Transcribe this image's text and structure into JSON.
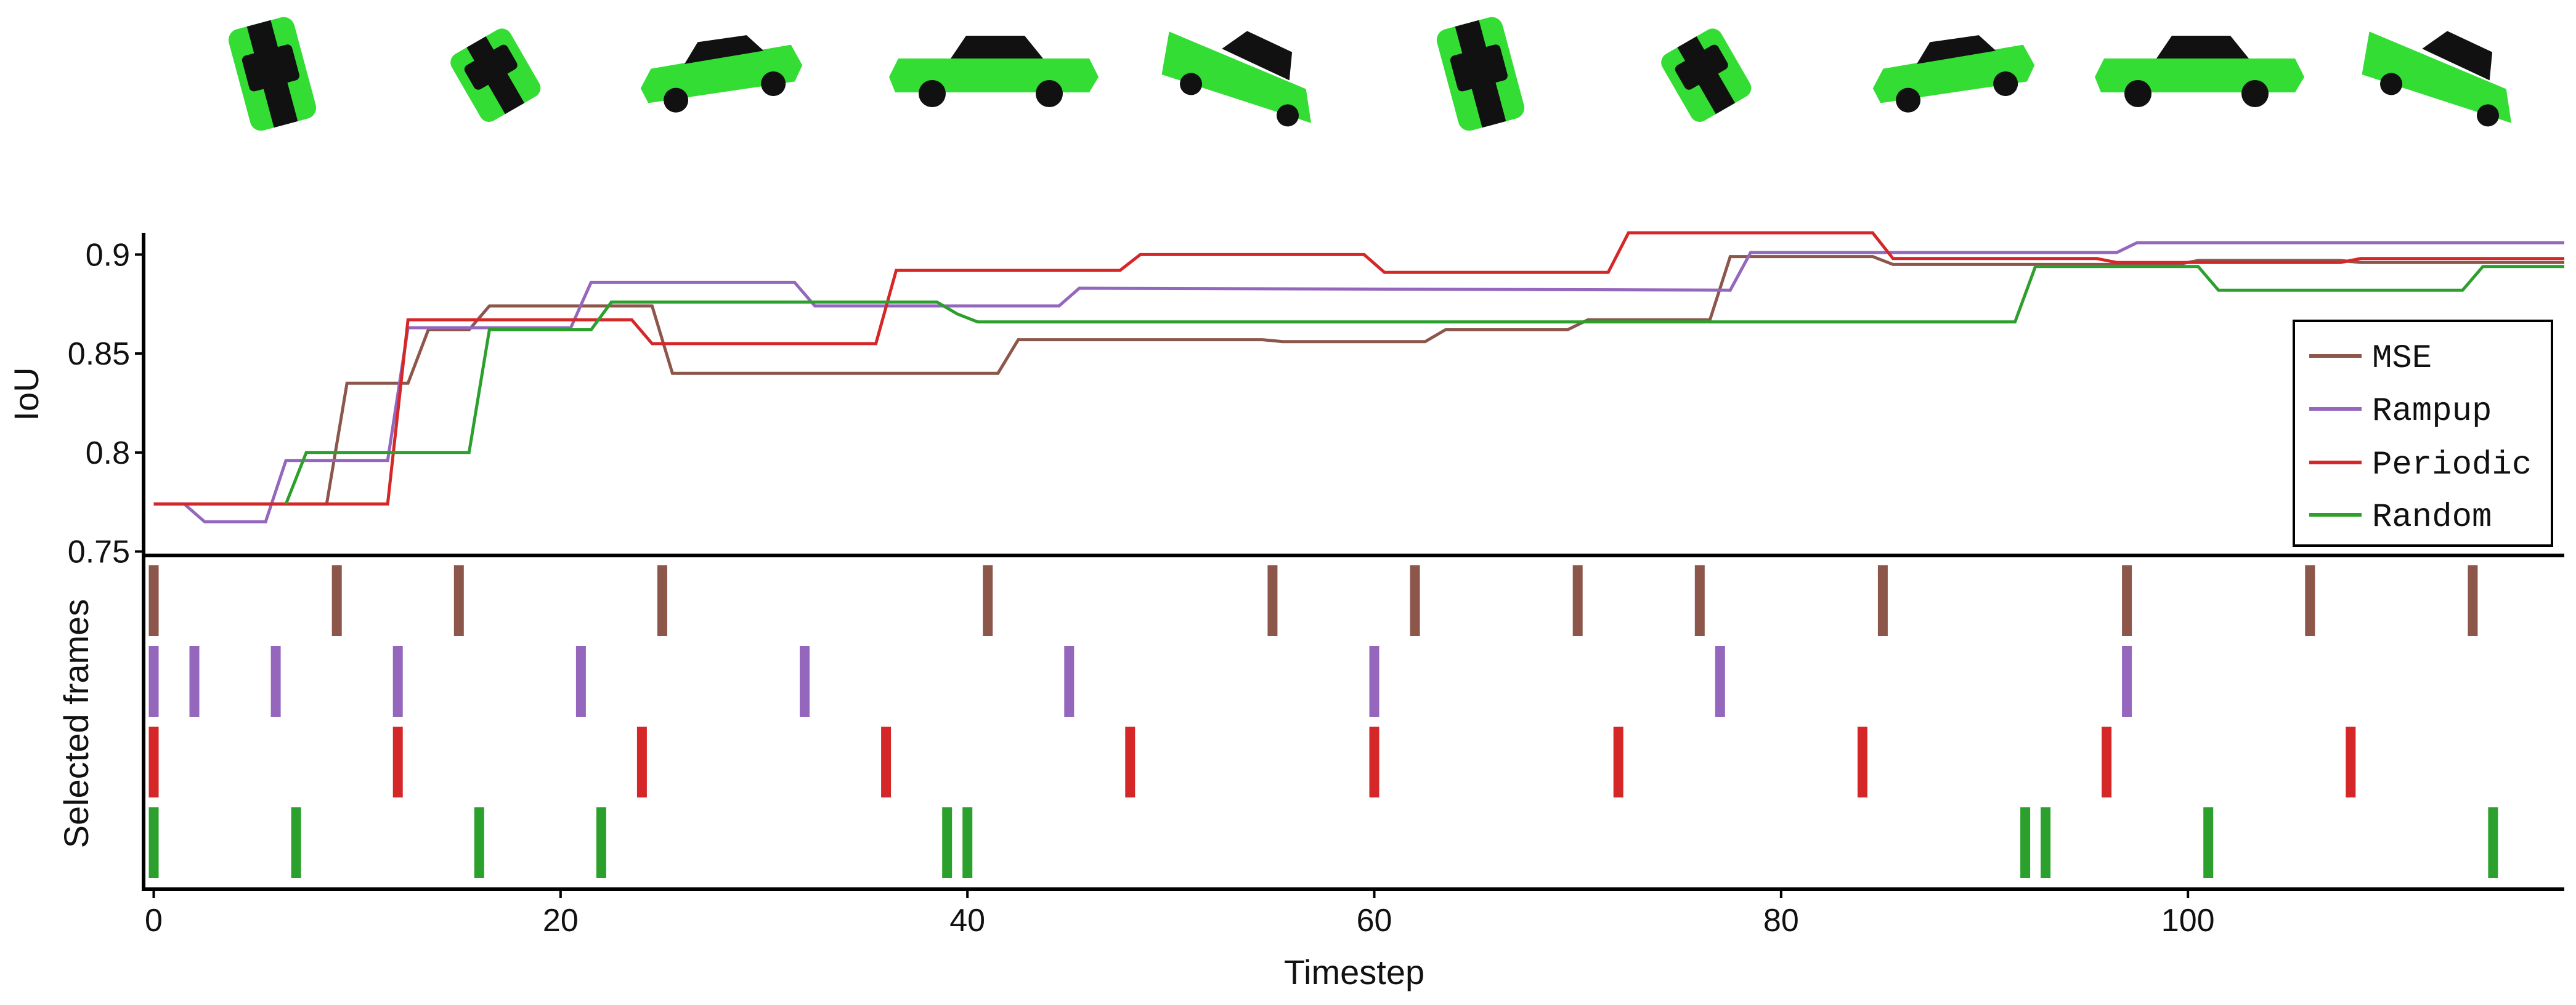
{
  "colors": {
    "MSE": "#8c564b",
    "Rampup": "#9467bd",
    "Periodic": "#d62728",
    "Random": "#2ca02c",
    "car_body": "#33dd33",
    "car_roof": "#111111"
  },
  "thumbnails": [
    {
      "icon": "car-render-top-tilted"
    },
    {
      "icon": "car-render-top-rear"
    },
    {
      "icon": "car-render-side-left"
    },
    {
      "icon": "car-render-side"
    },
    {
      "icon": "car-render-front-angled"
    },
    {
      "icon": "car-render-top-tilted"
    },
    {
      "icon": "car-render-top-rear"
    },
    {
      "icon": "car-render-side-left"
    },
    {
      "icon": "car-render-side"
    },
    {
      "icon": "car-render-front-angled"
    }
  ],
  "chart_data": [
    {
      "type": "line",
      "ylabel": "IoU",
      "xlim": [
        -0.5,
        118.5
      ],
      "ylim": [
        0.748,
        0.911
      ],
      "yticks": [
        0.75,
        0.8,
        0.85,
        0.9
      ],
      "ytick_labels": [
        "0.75",
        "0.8",
        "0.85",
        "0.9"
      ],
      "legend_position": "right",
      "series": [
        {
          "name": "MSE",
          "color_key": "MSE",
          "points": [
            [
              0,
              0.774
            ],
            [
              8.5,
              0.774
            ],
            [
              9.5,
              0.835
            ],
            [
              12.5,
              0.835
            ],
            [
              13.5,
              0.862
            ],
            [
              15.5,
              0.862
            ],
            [
              16.5,
              0.874
            ],
            [
              24.5,
              0.874
            ],
            [
              25.5,
              0.84
            ],
            [
              41.5,
              0.84
            ],
            [
              42.5,
              0.857
            ],
            [
              54.5,
              0.857
            ],
            [
              55.5,
              0.856
            ],
            [
              62.5,
              0.856
            ],
            [
              63.5,
              0.862
            ],
            [
              69.5,
              0.862
            ],
            [
              70.5,
              0.867
            ],
            [
              76.5,
              0.867
            ],
            [
              77.5,
              0.899
            ],
            [
              84.5,
              0.899
            ],
            [
              85.5,
              0.895
            ],
            [
              99.5,
              0.895
            ],
            [
              100.5,
              0.897
            ],
            [
              107.5,
              0.897
            ],
            [
              108.5,
              0.896
            ],
            [
              118.5,
              0.896
            ]
          ]
        },
        {
          "name": "Rampup",
          "color_key": "Rampup",
          "points": [
            [
              0,
              0.774
            ],
            [
              1.5,
              0.774
            ],
            [
              2.5,
              0.765
            ],
            [
              5.5,
              0.765
            ],
            [
              6.5,
              0.796
            ],
            [
              11.5,
              0.796
            ],
            [
              12.5,
              0.863
            ],
            [
              20.5,
              0.863
            ],
            [
              21.5,
              0.886
            ],
            [
              31.5,
              0.886
            ],
            [
              32.5,
              0.874
            ],
            [
              44.5,
              0.874
            ],
            [
              45.5,
              0.883
            ],
            [
              77.5,
              0.882
            ],
            [
              78.5,
              0.901
            ],
            [
              96.5,
              0.901
            ],
            [
              97.5,
              0.906
            ],
            [
              118.5,
              0.906
            ]
          ]
        },
        {
          "name": "Periodic",
          "color_key": "Periodic",
          "points": [
            [
              0,
              0.774
            ],
            [
              11.5,
              0.774
            ],
            [
              12.5,
              0.867
            ],
            [
              23.5,
              0.867
            ],
            [
              24.5,
              0.855
            ],
            [
              35.5,
              0.855
            ],
            [
              36.5,
              0.892
            ],
            [
              47.5,
              0.892
            ],
            [
              48.5,
              0.9
            ],
            [
              59.5,
              0.9
            ],
            [
              60.5,
              0.891
            ],
            [
              71.5,
              0.891
            ],
            [
              72.5,
              0.911
            ],
            [
              84.5,
              0.911
            ],
            [
              85.5,
              0.898
            ],
            [
              95.5,
              0.898
            ],
            [
              96.5,
              0.896
            ],
            [
              107.5,
              0.896
            ],
            [
              108.5,
              0.898
            ],
            [
              118.5,
              0.898
            ]
          ]
        },
        {
          "name": "Random",
          "color_key": "Random",
          "points": [
            [
              6.5,
              0.774
            ],
            [
              7.5,
              0.8
            ],
            [
              15.5,
              0.8
            ],
            [
              16.5,
              0.862
            ],
            [
              21.5,
              0.862
            ],
            [
              22.5,
              0.876
            ],
            [
              38.5,
              0.876
            ],
            [
              39.5,
              0.87
            ],
            [
              40.5,
              0.866
            ],
            [
              91.5,
              0.866
            ],
            [
              92.5,
              0.894
            ],
            [
              100.5,
              0.894
            ],
            [
              101.5,
              0.882
            ],
            [
              113.5,
              0.882
            ],
            [
              114.5,
              0.894
            ],
            [
              118.5,
              0.894
            ]
          ]
        }
      ]
    },
    {
      "type": "event",
      "ylabel": "Selected frames",
      "xlabel": "Timestep",
      "xlim": [
        -0.5,
        118.5
      ],
      "xticks": [
        0,
        20,
        40,
        60,
        80,
        100
      ],
      "xtick_labels": [
        "0",
        "20",
        "40",
        "60",
        "80",
        "100"
      ],
      "rows": [
        {
          "name": "MSE",
          "color_key": "MSE",
          "frames": [
            0,
            9,
            15,
            25,
            41,
            55,
            62,
            70,
            76,
            85,
            97,
            106,
            114
          ]
        },
        {
          "name": "Rampup",
          "color_key": "Rampup",
          "frames": [
            0,
            2,
            6,
            12,
            21,
            32,
            45,
            60,
            77,
            97
          ]
        },
        {
          "name": "Periodic",
          "color_key": "Periodic",
          "frames": [
            0,
            12,
            24,
            36,
            48,
            60,
            72,
            84,
            96,
            108
          ]
        },
        {
          "name": "Random",
          "color_key": "Random",
          "frames": [
            0,
            7,
            16,
            22,
            39,
            40,
            92,
            93,
            101,
            115
          ]
        }
      ]
    }
  ]
}
